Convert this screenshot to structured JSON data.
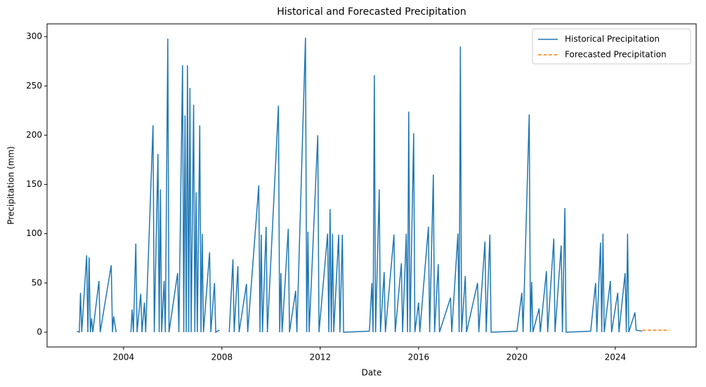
{
  "chart_data": {
    "type": "line",
    "title": "Historical and Forecasted Precipitation",
    "xlabel": "Date",
    "ylabel": "Precipitation (mm)",
    "xlim": [
      2000.89,
      2027.29
    ],
    "ylim": [
      -15,
      313
    ],
    "xticks": [
      2004,
      2008,
      2012,
      2016,
      2020,
      2024
    ],
    "yticks": [
      0,
      50,
      100,
      150,
      200,
      250,
      300
    ],
    "legend": "upper right",
    "series": [
      {
        "name": "Historical Precipitation",
        "color": "#1f77b4",
        "dash": false,
        "x": [
          2002.1,
          2002.2,
          2002.25,
          2002.3,
          2002.5,
          2002.55,
          2002.6,
          2002.65,
          2002.7,
          2002.75,
          2003.0,
          2003.05,
          2003.5,
          2003.55,
          2003.6,
          2003.7,
          2003.9,
          2004.3,
          2004.35,
          2004.4,
          2004.5,
          2004.55,
          2004.7,
          2004.75,
          2004.85,
          2004.9,
          2005.2,
          2005.25,
          2005.4,
          2005.45,
          2005.5,
          2005.55,
          2005.65,
          2005.7,
          2005.8,
          2005.85,
          2006.2,
          2006.25,
          2006.4,
          2006.45,
          2006.5,
          2006.55,
          2006.6,
          2006.65,
          2006.7,
          2006.75,
          2006.85,
          2006.9,
          2006.95,
          2007.0,
          2007.1,
          2007.15,
          2007.2,
          2007.25,
          2007.5,
          2007.55,
          2007.7,
          2007.75,
          2007.9,
          2008.1,
          2008.3,
          2008.45,
          2008.5,
          2008.65,
          2008.7,
          2009.0,
          2009.05,
          2009.5,
          2009.55,
          2009.6,
          2009.65,
          2009.8,
          2009.85,
          2010.3,
          2010.35,
          2010.4,
          2010.45,
          2010.7,
          2010.75,
          2011.0,
          2011.05,
          2011.4,
          2011.45,
          2011.5,
          2011.55,
          2011.9,
          2011.95,
          2012.3,
          2012.35,
          2012.4,
          2012.45,
          2012.5,
          2012.55,
          2012.75,
          2012.8,
          2012.9,
          2012.95,
          2014.0,
          2014.1,
          2014.15,
          2014.2,
          2014.25,
          2014.4,
          2014.45,
          2014.6,
          2014.65,
          2015.0,
          2015.05,
          2015.3,
          2015.35,
          2015.5,
          2015.55,
          2015.6,
          2015.65,
          2015.8,
          2015.85,
          2016.0,
          2016.05,
          2016.4,
          2016.45,
          2016.6,
          2016.65,
          2016.8,
          2016.85,
          2017.3,
          2017.35,
          2017.6,
          2017.65,
          2017.7,
          2017.75,
          2017.9,
          2017.95,
          2018.4,
          2018.45,
          2018.7,
          2018.75,
          2018.9,
          2018.95,
          2020.0,
          2020.2,
          2020.25,
          2020.5,
          2020.55,
          2020.6,
          2020.65,
          2020.9,
          2020.95,
          2021.2,
          2021.25,
          2021.5,
          2021.55,
          2021.8,
          2021.85,
          2021.95,
          2022.0,
          2023.0,
          2023.2,
          2023.25,
          2023.4,
          2023.45,
          2023.5,
          2023.55,
          2023.8,
          2023.85,
          2024.1,
          2024.15,
          2024.4,
          2024.45,
          2024.5,
          2024.55,
          2024.8,
          2024.85,
          2025.1
        ],
        "values": [
          1,
          0,
          40,
          0,
          78,
          0,
          76,
          0,
          14,
          0,
          52,
          0,
          68,
          0,
          16,
          0,
          null,
          0,
          23,
          0,
          90,
          0,
          39,
          0,
          30,
          0,
          210,
          0,
          181,
          0,
          145,
          0,
          52,
          0,
          298,
          0,
          60,
          0,
          271,
          0,
          220,
          0,
          271,
          0,
          248,
          0,
          231,
          0,
          142,
          0,
          210,
          0,
          100,
          0,
          81,
          0,
          50,
          0,
          2,
          null,
          0,
          74,
          0,
          67,
          0,
          49,
          0,
          149,
          0,
          99,
          0,
          107,
          0,
          230,
          0,
          60,
          0,
          105,
          0,
          42,
          0,
          299,
          0,
          102,
          0,
          200,
          0,
          100,
          0,
          125,
          0,
          100,
          0,
          99,
          0,
          99,
          0,
          1,
          50,
          0,
          261,
          0,
          145,
          0,
          61,
          0,
          99,
          0,
          70,
          0,
          100,
          0,
          224,
          0,
          202,
          0,
          30,
          0,
          107,
          0,
          160,
          0,
          69,
          0,
          35,
          0,
          100,
          0,
          290,
          0,
          57,
          0,
          50,
          0,
          92,
          0,
          99,
          0,
          1,
          40,
          0,
          221,
          0,
          51,
          0,
          24,
          0,
          62,
          0,
          95,
          0,
          88,
          0,
          126,
          0,
          1,
          50,
          0,
          91,
          0,
          100,
          0,
          52,
          0,
          40,
          0,
          60,
          0,
          100,
          0,
          20,
          2,
          1
        ]
      },
      {
        "name": "Forecasted Precipitation",
        "color": "#ff7f0e",
        "dash": true,
        "x": [
          2025.1,
          2025.4,
          2025.7,
          2026.0,
          2026.2
        ],
        "values": [
          2,
          2,
          2,
          2,
          2
        ]
      }
    ]
  }
}
